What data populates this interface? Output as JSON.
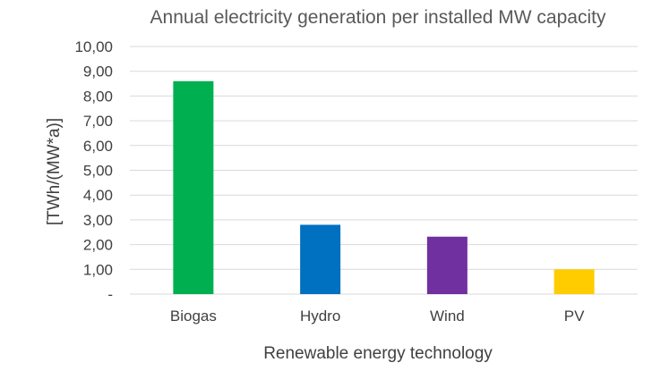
{
  "chart_data": {
    "type": "bar",
    "title": "Annual electricity generation per installed MW capacity",
    "xlabel": "Renewable energy technology",
    "ylabel": "[TWh/(MW*a)]",
    "categories": [
      "Biogas",
      "Hydro",
      "Wind",
      "PV"
    ],
    "values": [
      8.6,
      2.8,
      2.32,
      1.0
    ],
    "colors": [
      "#00b050",
      "#0070c0",
      "#7030a0",
      "#ffcc00"
    ],
    "ylim": [
      0,
      10
    ],
    "ytick_values": [
      0,
      1,
      2,
      3,
      4,
      5,
      6,
      7,
      8,
      9,
      10
    ],
    "ytick_labels": [
      "-",
      "1,00",
      "2,00",
      "3,00",
      "4,00",
      "5,00",
      "6,00",
      "7,00",
      "8,00",
      "9,00",
      "10,00"
    ],
    "grid": true,
    "legend": "none"
  }
}
